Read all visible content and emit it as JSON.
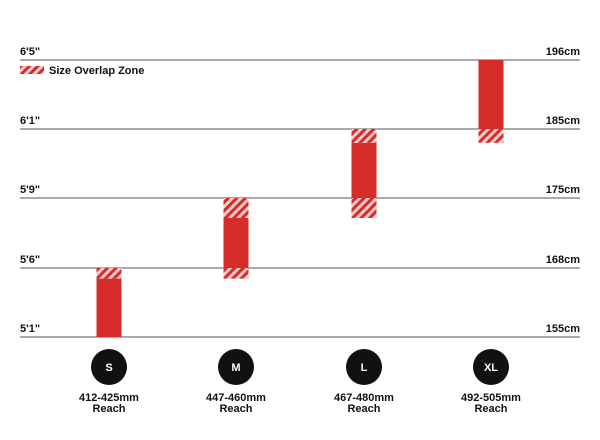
{
  "chart_data": {
    "type": "bar",
    "title": "",
    "xlabel": "",
    "ylabel": "",
    "legend": {
      "label": "Size Overlap Zone",
      "placement": "top-left"
    },
    "colors": {
      "bar": "#d62b2b",
      "hatch_bg": "#f6c9c9",
      "grid": "#555555",
      "text": "#111111",
      "badge": "#111111"
    },
    "y_axis_left_ticks": [
      {
        "value": 155,
        "label": "5'1\""
      },
      {
        "value": 168,
        "label": "5'6\""
      },
      {
        "value": 175,
        "label": "5'9\""
      },
      {
        "value": 185,
        "label": "6'1\""
      },
      {
        "value": 196,
        "label": "6'5\""
      }
    ],
    "y_axis_right_ticks": [
      {
        "value": 155,
        "label": "155cm"
      },
      {
        "value": 168,
        "label": "168cm"
      },
      {
        "value": 175,
        "label": "175cm"
      },
      {
        "value": 185,
        "label": "185cm"
      },
      {
        "value": 196,
        "label": "196cm"
      }
    ],
    "sizes": [
      {
        "badge": "S",
        "reach": "412-425mm",
        "reach_label": "Reach",
        "overlap_low": null,
        "low": 155,
        "high": 166,
        "overlap_high": 168
      },
      {
        "badge": "M",
        "reach": "447-460mm",
        "reach_label": "Reach",
        "overlap_low": 166,
        "low": 168,
        "high": 173,
        "overlap_high": 175
      },
      {
        "badge": "L",
        "reach": "467-480mm",
        "reach_label": "Reach",
        "overlap_low": 173,
        "low": 175,
        "high": 183,
        "overlap_high": 185
      },
      {
        "badge": "XL",
        "reach": "492-505mm",
        "reach_label": "Reach",
        "overlap_low": 183,
        "low": 185,
        "high": 196,
        "overlap_high": null
      }
    ]
  }
}
